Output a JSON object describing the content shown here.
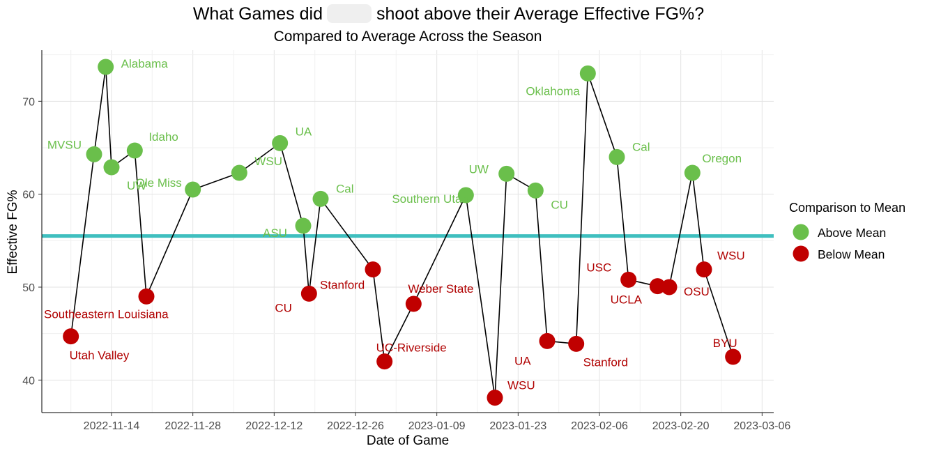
{
  "chart_data": {
    "type": "line",
    "title": "What Games did",
    "title_suffix": "shoot above their Average Effective FG%?",
    "subtitle": "Compared to Average Across the Season",
    "xlabel": "Date of Game",
    "ylabel": "Effective FG%",
    "x_axis": {
      "type": "date",
      "range": [
        "2022-11-02",
        "2023-03-08"
      ],
      "ticks": [
        "2022-11-14",
        "2022-11-28",
        "2022-12-12",
        "2022-12-26",
        "2023-01-09",
        "2023-01-23",
        "2023-02-06",
        "2023-02-20",
        "2023-03-06"
      ]
    },
    "y_axis": {
      "range": [
        36.5,
        75.5
      ],
      "ticks": [
        40,
        50,
        60,
        70
      ]
    },
    "grid": true,
    "mean_line": {
      "value": 55.5,
      "color": "#3fbfbf"
    },
    "legend": {
      "title": "Comparison to Mean",
      "position": "right",
      "items": [
        {
          "label": "Above Mean",
          "color": "#6abf4b"
        },
        {
          "label": "Below Mean",
          "color": "#c00000"
        }
      ]
    },
    "colors": {
      "above": "#6abf4b",
      "below": "#c00000",
      "label_above": "#6abf4b",
      "label_below": "#b00000"
    },
    "points": [
      {
        "date": "2022-11-07",
        "value": 44.7,
        "label": "Utah Valley",
        "group": "below"
      },
      {
        "date": "2022-11-11",
        "value": 64.3,
        "label": "MVSU",
        "group": "above"
      },
      {
        "date": "2022-11-13",
        "value": 73.7,
        "label": "Alabama",
        "group": "above"
      },
      {
        "date": "2022-11-14",
        "value": 62.9,
        "label": "UW",
        "group": "above"
      },
      {
        "date": "2022-11-18",
        "value": 64.7,
        "label": "Idaho",
        "group": "above"
      },
      {
        "date": "2022-11-20",
        "value": 49.0,
        "label": "Southeastern Louisiana",
        "group": "below"
      },
      {
        "date": "2022-11-28",
        "value": 60.5,
        "label": "Ole Miss",
        "group": "above"
      },
      {
        "date": "2022-12-06",
        "value": 62.3,
        "label": "WSU",
        "group": "above"
      },
      {
        "date": "2022-12-13",
        "value": 65.5,
        "label": "UA",
        "group": "above"
      },
      {
        "date": "2022-12-17",
        "value": 56.6,
        "label": "ASU",
        "group": "above"
      },
      {
        "date": "2022-12-18",
        "value": 49.3,
        "label": "CU",
        "group": "below"
      },
      {
        "date": "2022-12-20",
        "value": 59.5,
        "label": "Cal",
        "group": "above"
      },
      {
        "date": "2022-12-29",
        "value": 51.9,
        "label": "Stanford",
        "group": "below"
      },
      {
        "date": "2022-12-31",
        "value": 42.0,
        "label": "UC-Riverside",
        "group": "below"
      },
      {
        "date": "2023-01-05",
        "value": 48.2,
        "label": "Weber State",
        "group": "below"
      },
      {
        "date": "2023-01-14",
        "value": 59.9,
        "label": "Southern Utah",
        "group": "above"
      },
      {
        "date": "2023-01-19",
        "value": 38.1,
        "label": "WSU",
        "group": "below"
      },
      {
        "date": "2023-01-21",
        "value": 62.2,
        "label": "UW",
        "group": "above"
      },
      {
        "date": "2023-01-26",
        "value": 60.4,
        "label": "CU",
        "group": "above"
      },
      {
        "date": "2023-01-28",
        "value": 44.2,
        "label": "UA",
        "group": "below"
      },
      {
        "date": "2023-02-02",
        "value": 43.9,
        "label": "Stanford",
        "group": "below"
      },
      {
        "date": "2023-02-04",
        "value": 73.0,
        "label": "Oklahoma",
        "group": "above"
      },
      {
        "date": "2023-02-09",
        "value": 64.0,
        "label": "Cal",
        "group": "above"
      },
      {
        "date": "2023-02-11",
        "value": 50.8,
        "label": "UCLA",
        "group": "below"
      },
      {
        "date": "2023-02-16",
        "value": 50.1,
        "label": "USC",
        "group": "below"
      },
      {
        "date": "2023-02-18",
        "value": 50.0,
        "label": "OSU",
        "group": "below"
      },
      {
        "date": "2023-02-22",
        "value": 62.3,
        "label": "Oregon",
        "group": "above"
      },
      {
        "date": "2023-02-24",
        "value": 51.9,
        "label": "WSU",
        "group": "below"
      },
      {
        "date": "2023-03-01",
        "value": 42.5,
        "label": "BYU",
        "group": "below"
      }
    ]
  }
}
